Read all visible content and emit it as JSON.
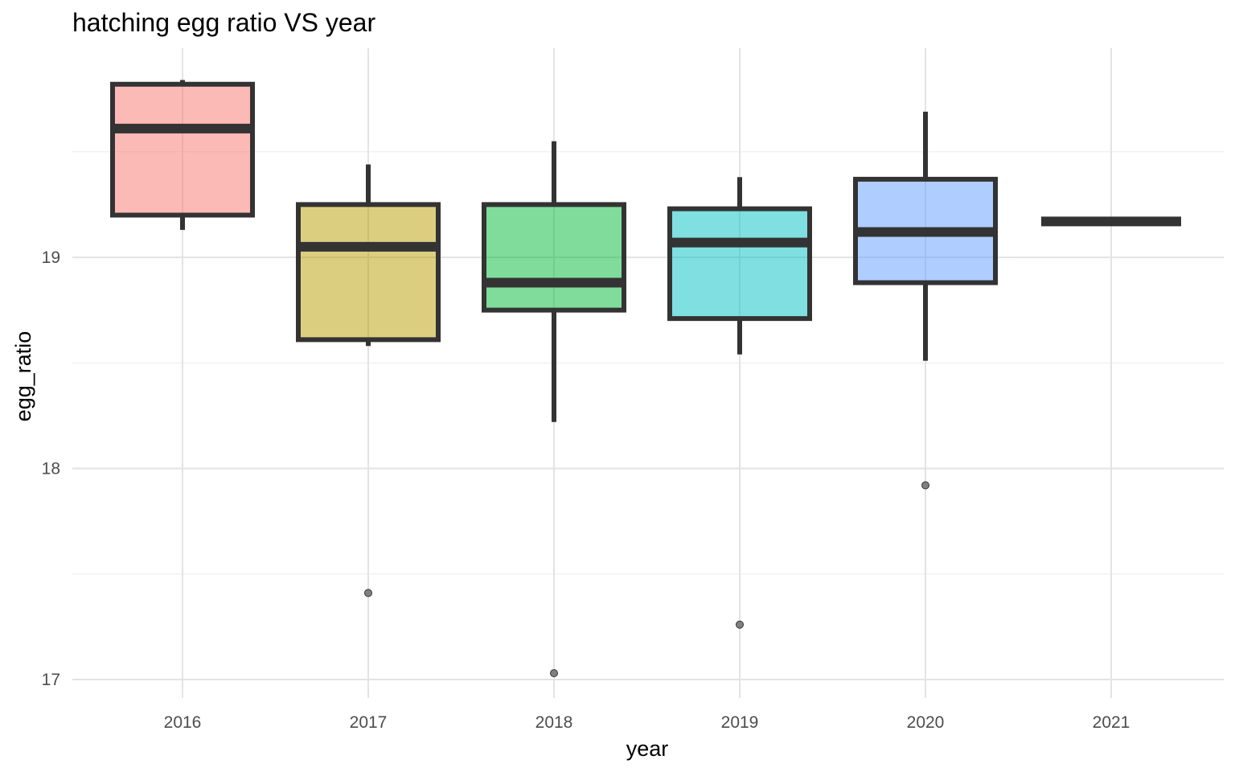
{
  "chart_data": {
    "type": "boxplot",
    "title": "hatching egg ratio VS year",
    "xlabel": "year",
    "ylabel": "egg_ratio",
    "categories": [
      "2016",
      "2017",
      "2018",
      "2019",
      "2020",
      "2021"
    ],
    "y_ticks": [
      17,
      18,
      19
    ],
    "ylim": [
      16.88,
      20.0
    ],
    "grid": true,
    "legend": "none",
    "colors": [
      "#F8766D",
      "#B79F00",
      "#00BA38",
      "#00BFC4",
      "#619CFF",
      "#F564E3"
    ],
    "box_fill_opacity": 0.5,
    "box_stroke": "#333333",
    "boxes": [
      {
        "x": "2016",
        "whisker_low": 19.13,
        "q1": 19.2,
        "median": 19.61,
        "q3": 19.82,
        "whisker_high": 19.84,
        "outliers": []
      },
      {
        "x": "2017",
        "whisker_low": 18.58,
        "q1": 18.61,
        "median": 19.05,
        "q3": 19.25,
        "whisker_high": 19.44,
        "outliers": [
          17.41
        ]
      },
      {
        "x": "2018",
        "whisker_low": 18.22,
        "q1": 18.75,
        "median": 18.88,
        "q3": 19.25,
        "whisker_high": 19.55,
        "outliers": [
          17.03
        ]
      },
      {
        "x": "2019",
        "whisker_low": 18.54,
        "q1": 18.71,
        "median": 19.07,
        "q3": 19.23,
        "whisker_high": 19.38,
        "outliers": [
          17.26
        ]
      },
      {
        "x": "2020",
        "whisker_low": 18.51,
        "q1": 18.88,
        "median": 19.12,
        "q3": 19.37,
        "whisker_high": 19.69,
        "outliers": [
          17.92
        ]
      },
      {
        "x": "2021",
        "whisker_low": 19.17,
        "q1": 19.17,
        "median": 19.17,
        "q3": 19.17,
        "whisker_high": 19.17,
        "outliers": []
      }
    ]
  }
}
